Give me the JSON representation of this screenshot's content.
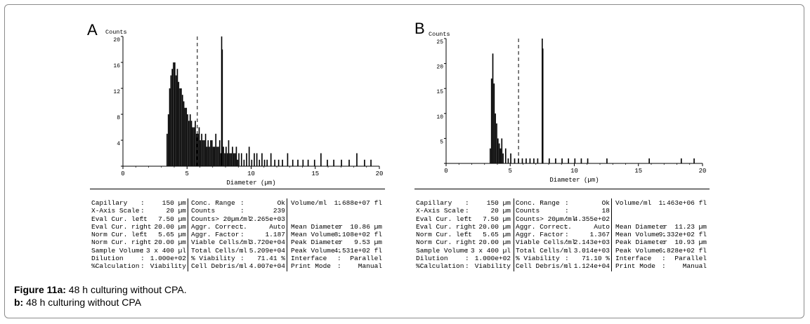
{
  "caption": {
    "line1_bold": "Figure 11a:",
    "line1_text": " 48 h culturing without CPA.",
    "line2_bold": "b:",
    "line2_text": " 48 h culturing without CPA"
  },
  "chart_data": [
    {
      "panel": "A",
      "type": "bar",
      "ylabel": "Counts",
      "xlabel": "Diameter (µm)",
      "xlim": [
        0,
        20
      ],
      "ylim": [
        0,
        20
      ],
      "xticks": [
        0,
        5,
        10,
        15,
        20
      ],
      "yticks": [
        0,
        4,
        8,
        12,
        16,
        20
      ],
      "cursor_dashed_x": 5.8,
      "cursor_solid_x": 7.7,
      "bins_x": [
        3.4,
        3.5,
        3.6,
        3.7,
        3.8,
        3.9,
        4.0,
        4.1,
        4.2,
        4.3,
        4.4,
        4.5,
        4.6,
        4.7,
        4.8,
        4.9,
        5.0,
        5.1,
        5.2,
        5.3,
        5.4,
        5.5,
        5.6,
        5.7,
        5.8,
        5.9,
        6.0,
        6.1,
        6.2,
        6.3,
        6.4,
        6.5,
        6.6,
        6.7,
        6.8,
        6.9,
        7.0,
        7.1,
        7.2,
        7.3,
        7.4,
        7.5,
        7.6,
        7.7,
        7.8,
        7.9,
        8.0,
        8.1,
        8.2,
        8.3,
        8.4,
        8.5,
        8.6,
        8.7,
        8.8,
        8.9,
        9.0,
        9.2,
        9.4,
        9.6,
        9.8,
        10.0,
        10.2,
        10.4,
        10.6,
        10.8,
        11.0,
        11.2,
        11.5,
        11.8,
        12.1,
        12.4,
        12.8,
        13.2,
        13.6,
        14.0,
        14.4,
        14.9,
        15.4,
        15.9,
        16.4,
        17.0,
        17.6,
        18.2,
        18.8,
        19.3
      ],
      "values": [
        5,
        8,
        12,
        14,
        15,
        16,
        16,
        14,
        15,
        13,
        12,
        12,
        11,
        10,
        9,
        9,
        8,
        7,
        8,
        7,
        6,
        6,
        7,
        5,
        5,
        6,
        4,
        5,
        4,
        4,
        5,
        3,
        4,
        3,
        4,
        4,
        3,
        3,
        5,
        3,
        3,
        4,
        2,
        18,
        3,
        2,
        3,
        2,
        4,
        2,
        2,
        3,
        2,
        2,
        3,
        1,
        2,
        2,
        1,
        2,
        3,
        1,
        2,
        2,
        1,
        2,
        1,
        1,
        2,
        1,
        1,
        1,
        2,
        1,
        1,
        1,
        1,
        1,
        2,
        1,
        1,
        1,
        1,
        2,
        1,
        1
      ]
    },
    {
      "panel": "B",
      "type": "bar",
      "ylabel": "Counts",
      "xlabel": "Diameter (µm)",
      "xlim": [
        0,
        20
      ],
      "ylim": [
        0,
        25
      ],
      "xticks": [
        0,
        5,
        10,
        15,
        20
      ],
      "yticks": [
        0,
        5,
        10,
        15,
        20,
        25
      ],
      "cursor_dashed_x": 5.65,
      "cursor_solid_x": 7.5,
      "bins_x": [
        3.4,
        3.5,
        3.6,
        3.7,
        3.8,
        3.9,
        4.0,
        4.1,
        4.2,
        4.3,
        4.4,
        4.6,
        4.8,
        5.0,
        5.3,
        5.6,
        5.9,
        6.2,
        6.5,
        6.8,
        7.1,
        7.5,
        8.0,
        8.5,
        9.0,
        9.5,
        10.0,
        10.5,
        11.0,
        12.5,
        15.8,
        18.3,
        19.3
      ],
      "values": [
        3,
        17,
        22,
        16,
        10,
        8,
        5,
        4,
        3,
        5,
        2,
        3,
        1,
        2,
        1,
        1,
        1,
        1,
        1,
        1,
        1,
        23,
        1,
        1,
        1,
        1,
        1,
        1,
        1,
        1,
        1,
        1,
        1
      ]
    }
  ],
  "panelA": {
    "letter": "A",
    "stats": {
      "col1": [
        {
          "k": "Capillary",
          "v": "150 µm"
        },
        {
          "k": "X-Axis Scale",
          "v": "20 µm"
        },
        {
          "k": "Eval Cur. left",
          "v": "7.50 µm"
        },
        {
          "k": "Eval Cur. right",
          "v": "20.00 µm"
        },
        {
          "k": "Norm Cur. left",
          "v": "5.65 µm"
        },
        {
          "k": "Norm Cur. right",
          "v": "20.00 µm"
        },
        {
          "k": "Sample Volume",
          "v": "3 x 400 µl"
        },
        {
          "k": "Dilution",
          "v": "1.000e+02"
        },
        {
          "k": "%Calculation",
          "v": "Viability"
        }
      ],
      "col2": [
        {
          "k": "Conc. Range",
          "v": "Ok"
        },
        {
          "k": "Counts",
          "v": "239"
        },
        {
          "k": "Counts> 20µm/ml",
          "v": "2.265e+03"
        },
        {
          "k": "Aggr. Correct.",
          "v": "Auto"
        },
        {
          "k": "Aggr. Factor",
          "v": "1.187"
        },
        {
          "k": "Viable Cells/ml",
          "v": "3.720e+04"
        },
        {
          "k": "Total Cells/ml",
          "v": "5.209e+04"
        },
        {
          "k": "% Viability",
          "v": "71.41 %"
        },
        {
          "k": "Cell Debris/ml",
          "v": "4.007e+04"
        }
      ],
      "col3": [
        {
          "k": "Volume/ml",
          "v": "1.688e+07 fl"
        },
        {
          "k": "",
          "v": ""
        },
        {
          "k": "",
          "v": ""
        },
        {
          "k": "Mean Diameter",
          "v": "10.86 µm"
        },
        {
          "k": "Mean Volume",
          "v": "8.108e+02 fl"
        },
        {
          "k": "Peak Diameter",
          "v": "9.53 µm"
        },
        {
          "k": "Peak Volume",
          "v": "4.531e+02 fl"
        },
        {
          "k": "Interface",
          "v": "Parallel"
        },
        {
          "k": "Print Mode",
          "v": "Manual"
        }
      ]
    }
  },
  "panelB": {
    "letter": "B",
    "stats": {
      "col1": [
        {
          "k": "Capillary",
          "v": "150 µm"
        },
        {
          "k": "X-Axis Scale",
          "v": "20 µm"
        },
        {
          "k": "Eval Cur. left",
          "v": "7.50 µm"
        },
        {
          "k": "Eval Cur. right",
          "v": "20.00 µm"
        },
        {
          "k": "Norm Cur. left",
          "v": "5.65 µm"
        },
        {
          "k": "Norm Cur. right",
          "v": "20.00 µm"
        },
        {
          "k": "Sample Volume",
          "v": "3 x 400 µl"
        },
        {
          "k": "Dilution",
          "v": "1.000e+02"
        },
        {
          "k": "%Calculation",
          "v": "Viability"
        }
      ],
      "col2": [
        {
          "k": "Conc. Range",
          "v": "Ok"
        },
        {
          "k": "Counts",
          "v": "18"
        },
        {
          "k": "Counts> 20µm/ml",
          "v": "4.355e+02"
        },
        {
          "k": "Aggr. Correct.",
          "v": "Auto"
        },
        {
          "k": "Aggr. Factor",
          "v": "1.367"
        },
        {
          "k": "Viable Cells/ml",
          "v": "2.143e+03"
        },
        {
          "k": "Total Cells/ml",
          "v": "3.014e+03"
        },
        {
          "k": "% Viability",
          "v": "71.10 %"
        },
        {
          "k": "Cell Debris/ml",
          "v": "1.124e+04"
        }
      ],
      "col3": [
        {
          "k": "Volume/ml",
          "v": "1.463e+06 fl"
        },
        {
          "k": "",
          "v": ""
        },
        {
          "k": "",
          "v": ""
        },
        {
          "k": "Mean Diameter",
          "v": "11.23 µm"
        },
        {
          "k": "Mean Volume",
          "v": "9.332e+02 fl"
        },
        {
          "k": "Peak Diameter",
          "v": "10.93 µm"
        },
        {
          "k": "Peak Volume",
          "v": "6.828e+02 fl"
        },
        {
          "k": "Interface",
          "v": "Parallel"
        },
        {
          "k": "Print Mode",
          "v": "Manual"
        }
      ]
    }
  }
}
